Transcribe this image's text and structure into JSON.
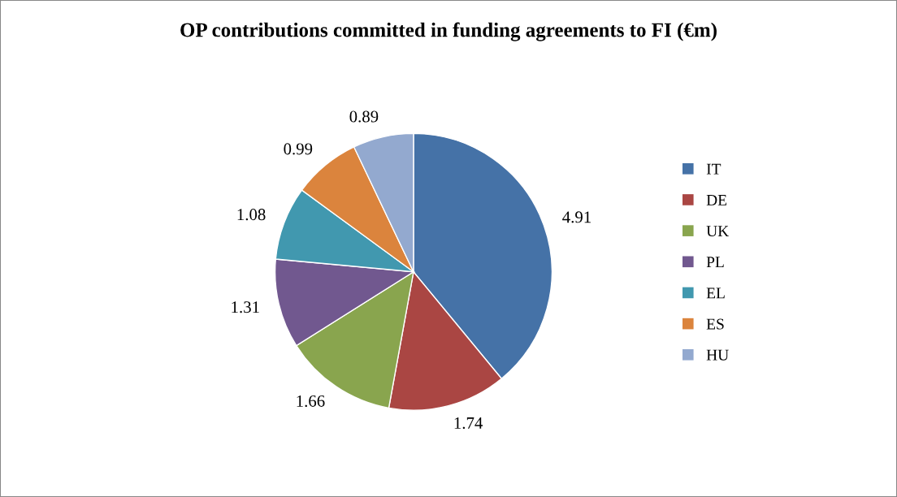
{
  "chart_data": {
    "type": "pie",
    "title": "OP contributions committed in funding agreements to FI (€m)",
    "categories": [
      "IT",
      "DE",
      "UK",
      "PL",
      "EL",
      "ES",
      "HU"
    ],
    "values": [
      4.91,
      1.74,
      1.66,
      1.31,
      1.08,
      0.99,
      0.89
    ],
    "colors": [
      "#4572a7",
      "#aa4643",
      "#89a54e",
      "#71588f",
      "#4198af",
      "#db843d",
      "#93a9cf"
    ],
    "data_labels": true,
    "legend": "right"
  }
}
